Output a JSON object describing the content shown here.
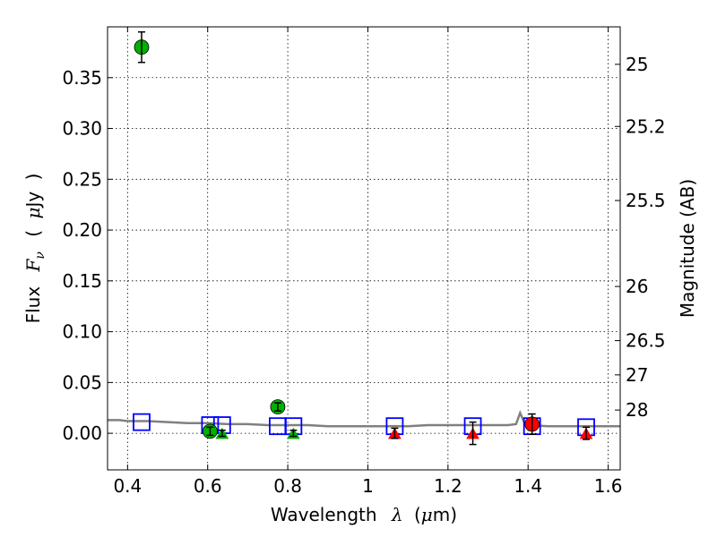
{
  "chart_data": {
    "type": "scatter",
    "xlabel": {
      "prefix": "Wavelength",
      "symbol": "λ",
      "unit_open": "(",
      "unit_mu": "μ",
      "unit_rest": "m)"
    },
    "ylabel": {
      "prefix": "Flux",
      "symbol": "F",
      "subscript": "ν",
      "unit_open": "(",
      "unit_mu": "μ",
      "unit_rest": "Jy",
      "unit_close": ")"
    },
    "y2label": "Magnitude (AB)",
    "xlim": [
      0.35,
      1.63
    ],
    "ylim": [
      -0.036,
      0.4
    ],
    "grid": true,
    "x_ticks": [
      {
        "value": 0.4,
        "label": "0.4"
      },
      {
        "value": 0.6,
        "label": "0.6"
      },
      {
        "value": 0.8,
        "label": "0.8"
      },
      {
        "value": 1.0,
        "label": "1"
      },
      {
        "value": 1.2,
        "label": "1.2"
      },
      {
        "value": 1.4,
        "label": "1.4"
      },
      {
        "value": 1.6,
        "label": "1.6"
      }
    ],
    "y_ticks": [
      {
        "value": 0.0,
        "label": "0.00"
      },
      {
        "value": 0.05,
        "label": "0.05"
      },
      {
        "value": 0.1,
        "label": "0.10"
      },
      {
        "value": 0.15,
        "label": "0.15"
      },
      {
        "value": 0.2,
        "label": "0.20"
      },
      {
        "value": 0.25,
        "label": "0.25"
      },
      {
        "value": 0.3,
        "label": "0.30"
      },
      {
        "value": 0.35,
        "label": "0.35"
      }
    ],
    "y2_ticks": [
      {
        "flux": 0.3631,
        "label": "25"
      },
      {
        "flux": 0.302,
        "label": "25.2"
      },
      {
        "flux": 0.2291,
        "label": "25.5"
      },
      {
        "flux": 0.1445,
        "label": "26"
      },
      {
        "flux": 0.0912,
        "label": "26.5"
      },
      {
        "flux": 0.0575,
        "label": "27"
      },
      {
        "flux": 0.0229,
        "label": "28"
      }
    ],
    "series": [
      {
        "kind": "detections",
        "color": "#00b000",
        "marker": "circle",
        "points": [
          {
            "x": 0.435,
            "y": 0.38,
            "err": 0.015
          },
          {
            "x": 0.606,
            "y": 0.002,
            "err": 0.004
          },
          {
            "x": 0.775,
            "y": 0.026,
            "err": 0.004
          }
        ]
      },
      {
        "kind": "upper_limits",
        "color": "#00b000",
        "marker": "triangle",
        "points": [
          {
            "x": 0.636,
            "y": 0.0,
            "err": 0.003
          },
          {
            "x": 0.814,
            "y": 0.0,
            "err": 0.003
          }
        ]
      },
      {
        "kind": "detections",
        "color": "#ff0000",
        "marker": "circle",
        "points": [
          {
            "x": 1.41,
            "y": 0.009,
            "err": 0.01
          }
        ]
      },
      {
        "kind": "upper_limits",
        "color": "#ff0000",
        "marker": "triangle",
        "points": [
          {
            "x": 1.067,
            "y": 0.0,
            "err": 0.005
          },
          {
            "x": 1.262,
            "y": 0.0,
            "err": 0.011
          },
          {
            "x": 1.545,
            "y": 0.0,
            "err": 0.006
          }
        ]
      },
      {
        "kind": "model_photometry",
        "color": "#0000ff",
        "marker": "square",
        "points": [
          {
            "x": 0.435,
            "y": 0.011
          },
          {
            "x": 0.606,
            "y": 0.008
          },
          {
            "x": 0.636,
            "y": 0.008
          },
          {
            "x": 0.775,
            "y": 0.007
          },
          {
            "x": 0.814,
            "y": 0.007
          },
          {
            "x": 1.067,
            "y": 0.007
          },
          {
            "x": 1.262,
            "y": 0.007
          },
          {
            "x": 1.41,
            "y": 0.007
          },
          {
            "x": 1.545,
            "y": 0.006
          }
        ]
      },
      {
        "kind": "model_sed",
        "color": "#808080",
        "marker": "line",
        "points": [
          {
            "x": 0.35,
            "y": 0.013
          },
          {
            "x": 0.38,
            "y": 0.013
          },
          {
            "x": 0.4,
            "y": 0.012
          },
          {
            "x": 0.45,
            "y": 0.012
          },
          {
            "x": 0.5,
            "y": 0.011
          },
          {
            "x": 0.55,
            "y": 0.01
          },
          {
            "x": 0.6,
            "y": 0.01
          },
          {
            "x": 0.65,
            "y": 0.009
          },
          {
            "x": 0.7,
            "y": 0.009
          },
          {
            "x": 0.75,
            "y": 0.008
          },
          {
            "x": 0.8,
            "y": 0.008
          },
          {
            "x": 0.85,
            "y": 0.008
          },
          {
            "x": 0.9,
            "y": 0.007
          },
          {
            "x": 0.95,
            "y": 0.007
          },
          {
            "x": 1.0,
            "y": 0.007
          },
          {
            "x": 1.05,
            "y": 0.007
          },
          {
            "x": 1.1,
            "y": 0.007
          },
          {
            "x": 1.15,
            "y": 0.008
          },
          {
            "x": 1.2,
            "y": 0.008
          },
          {
            "x": 1.25,
            "y": 0.008
          },
          {
            "x": 1.3,
            "y": 0.008
          },
          {
            "x": 1.35,
            "y": 0.008
          },
          {
            "x": 1.37,
            "y": 0.009
          },
          {
            "x": 1.38,
            "y": 0.02
          },
          {
            "x": 1.39,
            "y": 0.011
          },
          {
            "x": 1.4,
            "y": 0.008
          },
          {
            "x": 1.45,
            "y": 0.007
          },
          {
            "x": 1.5,
            "y": 0.007
          },
          {
            "x": 1.55,
            "y": 0.007
          },
          {
            "x": 1.6,
            "y": 0.007
          },
          {
            "x": 1.63,
            "y": 0.007
          }
        ]
      }
    ]
  }
}
